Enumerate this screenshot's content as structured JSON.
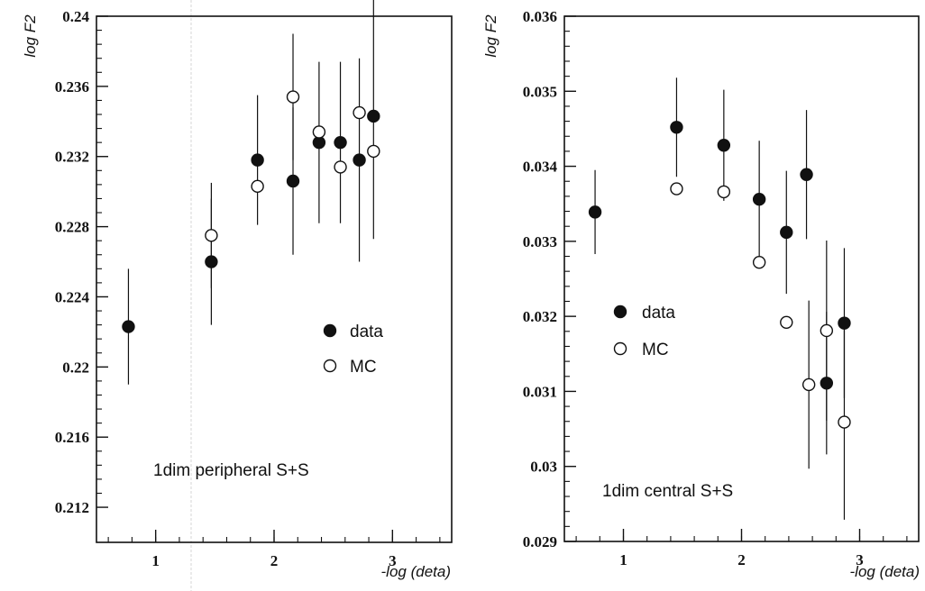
{
  "chart_data": [
    {
      "type": "scatter",
      "annotation": "1dim peripheral S+S",
      "xlabel": "-log (deta)",
      "ylabel": "log F2",
      "xlim": [
        0.5,
        3.5
      ],
      "ylim": [
        0.21,
        0.24
      ],
      "xticks": [
        1,
        2,
        3
      ],
      "yticks": [
        0.212,
        0.216,
        0.22,
        0.224,
        0.228,
        0.232,
        0.236,
        0.24
      ],
      "ytick_labels": [
        "0.212",
        "0.216",
        "0.22",
        "0.224",
        "0.228",
        "0.232",
        "0.236",
        "0.24"
      ],
      "grid": false,
      "legend_position": "right-middle",
      "series": [
        {
          "name": "data",
          "marker": "filled-circle",
          "x": [
            0.77,
            1.47,
            1.86,
            2.16,
            2.38,
            2.56,
            2.72,
            2.84
          ],
          "y": [
            0.2223,
            0.226,
            0.2318,
            0.2306,
            0.2328,
            0.2328,
            0.2318,
            0.2343
          ],
          "yerr": [
            0.0033,
            0.0036,
            0.0037,
            0.0042,
            0.0046,
            0.0046,
            0.0058,
            0.007
          ]
        },
        {
          "name": "MC",
          "marker": "open-circle",
          "x": [
            1.47,
            1.86,
            2.16,
            2.38,
            2.56,
            2.72,
            2.84
          ],
          "y": [
            0.2275,
            0.2303,
            0.2354,
            0.2334,
            0.2314,
            0.2345,
            0.2323
          ],
          "yerr": [
            0.003,
            0.0,
            0.0036,
            0.0,
            0.0,
            0.0,
            0.0
          ]
        }
      ]
    },
    {
      "type": "scatter",
      "annotation": "1dim central S+S",
      "xlabel": "-log (deta)",
      "ylabel": "log F2",
      "xlim": [
        0.5,
        3.5
      ],
      "ylim": [
        0.029,
        0.036
      ],
      "xticks": [
        1,
        2,
        3
      ],
      "yticks": [
        0.029,
        0.03,
        0.031,
        0.032,
        0.033,
        0.034,
        0.035,
        0.036
      ],
      "ytick_labels": [
        "0.029",
        "0.03",
        "0.031",
        "0.032",
        "0.033",
        "0.034",
        "0.035",
        "0.036"
      ],
      "grid": false,
      "legend_position": "left-middle",
      "series": [
        {
          "name": "data",
          "marker": "filled-circle",
          "x": [
            0.76,
            1.45,
            1.85,
            2.15,
            2.38,
            2.55,
            2.72,
            2.87
          ],
          "y": [
            0.03339,
            0.03452,
            0.03428,
            0.03356,
            0.03312,
            0.03389,
            0.03111,
            0.03191
          ],
          "yerr": [
            0.00056,
            0.00066,
            0.00074,
            0.00078,
            0.00082,
            0.00086,
            0.00095,
            0.001
          ]
        },
        {
          "name": "MC",
          "marker": "open-circle",
          "x": [
            1.45,
            1.85,
            2.15,
            2.38,
            2.57,
            2.72,
            2.87
          ],
          "y": [
            0.0337,
            0.03366,
            0.03272,
            0.03192,
            0.03109,
            0.03181,
            0.03059
          ],
          "yerr": [
            0.0,
            0.0,
            0.0,
            0.0,
            0.00112,
            0.0012,
            0.0013
          ]
        }
      ]
    }
  ]
}
